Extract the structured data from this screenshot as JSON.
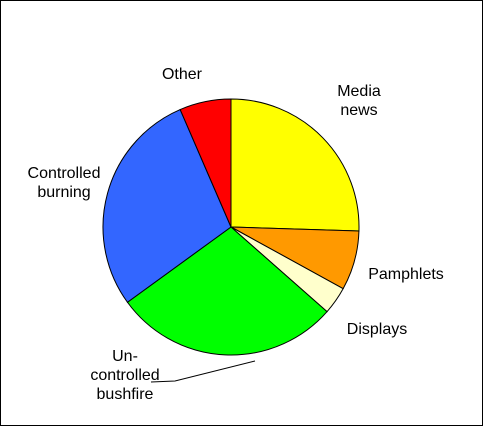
{
  "chart_data": {
    "type": "pie",
    "start_angle_deg": 0,
    "direction": "clockwise",
    "slices": [
      {
        "label_lines": [
          "Media",
          "news"
        ],
        "value": 25.5,
        "color": "#FFFF00"
      },
      {
        "label_lines": [
          "Pamphlets"
        ],
        "value": 7.5,
        "color": "#FF9900"
      },
      {
        "label_lines": [
          "Displays"
        ],
        "value": 3.5,
        "color": "#FFFFCC"
      },
      {
        "label_lines": [
          "Un-",
          "controlled",
          "bushfire"
        ],
        "value": 28.5,
        "color": "#00FF00"
      },
      {
        "label_lines": [
          "Controlled",
          "burning"
        ],
        "value": 28.5,
        "color": "#3366FF"
      },
      {
        "label_lines": [
          "Other"
        ],
        "value": 6.5,
        "color": "#FF0000"
      }
    ],
    "title": "",
    "legend": "none"
  }
}
